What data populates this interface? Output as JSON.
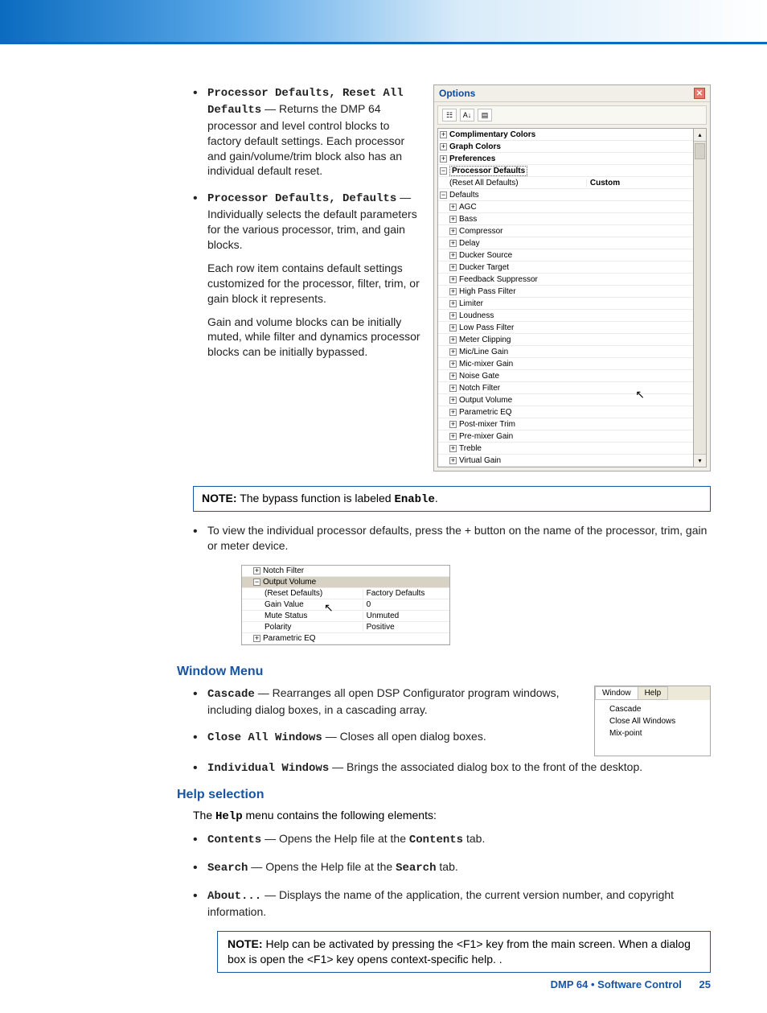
{
  "colors": {
    "accent_blue": "#1855a3",
    "accent_blue_light": "#5aa8e8",
    "panel_bg": "#f1efe7",
    "panel_border": "#a8a8a8",
    "close_red": "#e8786a"
  },
  "bullets_top": {
    "b1_title": "Processor Defaults, Reset All Defaults",
    "b1_text": " — Returns the DMP 64 processor and level control blocks to factory default settings. Each processor and gain/volume/trim block also has an individual default reset.",
    "b2_title": "Processor Defaults, Defaults",
    "b2_text": " — Individually selects the default parameters for the various processor, trim, and gain blocks.",
    "p1": "Each row item contains default settings customized for the processor, filter, trim, or gain block it represents.",
    "p2": "Gain and volume blocks can be initially muted, while filter and dynamics processor blocks can be initially bypassed."
  },
  "options_panel": {
    "title": "Options",
    "header_rows": [
      {
        "exp": "+",
        "label": "Complimentary Colors",
        "type": "bold",
        "ind": 0
      },
      {
        "exp": "+",
        "label": "Graph Colors",
        "type": "bold",
        "ind": 0
      },
      {
        "exp": "+",
        "label": "Preferences",
        "type": "bold",
        "ind": 0
      },
      {
        "exp": "−",
        "label": "Processor Defaults",
        "type": "bold-dotted",
        "ind": 0
      }
    ],
    "reset_row": {
      "label": "(Reset All Defaults)",
      "value": "Custom",
      "type": "bold-value",
      "ind": 1
    },
    "defaults_row": {
      "exp": "−",
      "label": "Defaults",
      "ind": 0
    },
    "default_items": [
      "AGC",
      "Bass",
      "Compressor",
      "Delay",
      "Ducker Source",
      "Ducker Target",
      "Feedback Suppressor",
      "High Pass Filter",
      "Limiter",
      "Loudness",
      "Low Pass Filter",
      "Meter Clipping",
      "Mic/Line Gain",
      "Mic-mixer Gain",
      "Noise Gate",
      "Notch Filter",
      "Output Volume",
      "Parametric EQ",
      "Post-mixer Trim",
      "Pre-mixer Gain",
      "Treble",
      "Virtual Gain"
    ]
  },
  "note1": {
    "label": "NOTE:",
    "text_pre": "The bypass function is labeled ",
    "enable": "Enable",
    "text_post": "."
  },
  "view_bullet": "To view the individual processor defaults, press the + button on the name of the processor, trim, gain or meter device.",
  "mini_table": {
    "rows": [
      {
        "exp": "+",
        "label": "Notch Filter",
        "value": "",
        "ind": 1,
        "hl": false
      },
      {
        "exp": "−",
        "label": "Output Volume",
        "value": "",
        "ind": 1,
        "hl": true
      },
      {
        "exp": "",
        "label": "(Reset Defaults)",
        "value": "Factory Defaults",
        "ind": 2,
        "hl": false
      },
      {
        "exp": "",
        "label": "Gain Value",
        "value": "0",
        "ind": 2,
        "hl": false
      },
      {
        "exp": "",
        "label": "Mute Status",
        "value": "Unmuted",
        "ind": 2,
        "hl": false
      },
      {
        "exp": "",
        "label": "Polarity",
        "value": "Positive",
        "ind": 2,
        "hl": false
      },
      {
        "exp": "+",
        "label": "Parametric EQ",
        "value": "",
        "ind": 1,
        "hl": false
      }
    ]
  },
  "window_menu": {
    "heading": "Window Menu",
    "items": [
      {
        "term": "Cascade",
        "text": " — Rearranges all open DSP Configurator program windows, including dialog boxes, in a cascading array."
      },
      {
        "term": "Close All Windows",
        "text": " — Closes all open dialog boxes."
      },
      {
        "term": "Individual Windows",
        "text": " — Brings the associated dialog box to the front of the desktop."
      }
    ],
    "panel": {
      "tabs": [
        "Window",
        "Help"
      ],
      "options": [
        "Cascade",
        "Close All Windows",
        "Mix-point"
      ]
    }
  },
  "help": {
    "heading": "Help selection",
    "intro_pre": "The ",
    "intro_term": "Help",
    "intro_post": " menu contains the following elements:",
    "items": [
      {
        "term": "Contents",
        "text_pre": " — Opens the Help file at the ",
        "mono": "Contents",
        "text_post": " tab."
      },
      {
        "term": "Search",
        "text_pre": " — Opens the Help file at the ",
        "mono": "Search",
        "text_post": " tab."
      },
      {
        "term": "About...",
        "text_pre": " — Displays the name of the application, the current version number, and copyright information.",
        "mono": "",
        "text_post": ""
      }
    ]
  },
  "note2": {
    "label": "NOTE:",
    "text": "Help can be activated by pressing the <F1> key from the main screen. When a dialog box is open the <F1> key opens context-specific help. ."
  },
  "footer": {
    "product": "DMP 64 • Software Control",
    "page": "25"
  }
}
